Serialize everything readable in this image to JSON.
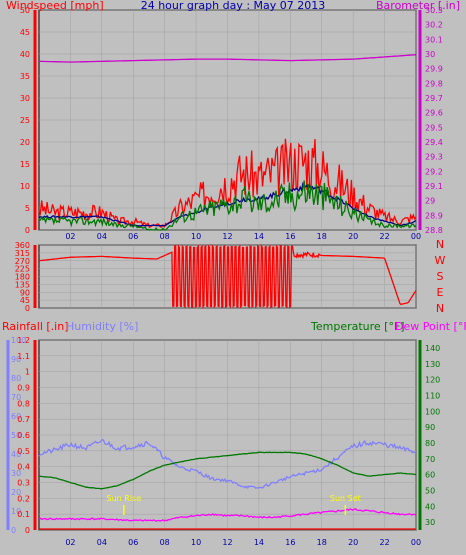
{
  "chart_data": [
    {
      "type": "line",
      "title": "24 hour graph day : May 07 2013",
      "ylabel_left": "Windspeed [mph]",
      "ylabel_right": "Barometer [.in]",
      "x_tick_labels": [
        "02",
        "04",
        "06",
        "08",
        "10",
        "12",
        "14",
        "16",
        "18",
        "20",
        "22",
        "00"
      ],
      "ylim_left": [
        0,
        50
      ],
      "y_ticks_left": [
        "0",
        "5",
        "10",
        "15",
        "20",
        "25",
        "30",
        "35",
        "40",
        "45",
        "50"
      ],
      "ylim_right": [
        28.8,
        30.3
      ],
      "y_ticks_right": [
        "28.8",
        "28.9",
        "29",
        "29.1",
        "29.2",
        "29.3",
        "29.4",
        "29.5",
        "29.6",
        "29.7",
        "29.8",
        "29.9",
        "30",
        "30.1",
        "30.2",
        "30.3"
      ],
      "series": [
        {
          "key": "gust",
          "color": "#ff0000",
          "hours": [
            0,
            1,
            2,
            3,
            4,
            5,
            6,
            7,
            8,
            9,
            10,
            11,
            12,
            13,
            14,
            15,
            16,
            17,
            18,
            19,
            20,
            21,
            22,
            23,
            24
          ],
          "values": [
            5,
            4,
            4,
            4,
            4,
            2,
            2,
            1,
            1,
            5,
            7,
            9,
            11,
            13,
            12,
            13,
            15,
            16,
            14,
            11,
            8,
            5,
            3,
            2,
            3
          ]
        },
        {
          "key": "avg",
          "color": "#00008b",
          "hours": [
            0,
            2,
            4,
            6,
            8,
            9,
            10,
            11,
            12,
            13,
            14,
            15,
            16,
            17,
            18,
            19,
            20,
            21,
            22,
            23,
            24
          ],
          "values": [
            3,
            3,
            3,
            1,
            1,
            3,
            4,
            5,
            6,
            7,
            7,
            8,
            9,
            10,
            9,
            7,
            5,
            3,
            2,
            1,
            2
          ]
        },
        {
          "key": "speed",
          "color": "#007700",
          "hours": [
            0,
            1,
            2,
            3,
            4,
            5,
            6,
            7,
            8,
            9,
            10,
            11,
            12,
            13,
            14,
            15,
            16,
            17,
            18,
            19,
            20,
            21,
            22,
            23,
            24
          ],
          "values": [
            2,
            2,
            2,
            2,
            2,
            1,
            1,
            0,
            0,
            3,
            4,
            5,
            6,
            7,
            6,
            7,
            8,
            9,
            8,
            6,
            4,
            2,
            1,
            1,
            1
          ]
        },
        {
          "key": "barometer",
          "axis": "right",
          "color": "#cc00cc",
          "hours": [
            0,
            2,
            4,
            6,
            8,
            10,
            12,
            14,
            16,
            18,
            20,
            22,
            24
          ],
          "values": [
            29.95,
            29.945,
            29.95,
            29.955,
            29.96,
            29.965,
            29.965,
            29.96,
            29.955,
            29.96,
            29.965,
            29.98,
            29.995
          ]
        }
      ]
    },
    {
      "type": "line",
      "ylabel_right": "N W S E N",
      "compass": [
        "N",
        "W",
        "S",
        "E",
        "N"
      ],
      "ylim": [
        0,
        360
      ],
      "y_ticks": [
        "0",
        "45",
        "90",
        "135",
        "180",
        "225",
        "270",
        "315",
        "360"
      ],
      "series": [
        {
          "key": "direction",
          "color": "#ff0000",
          "hours": [
            0,
            2,
            4,
            6,
            7.5,
            8.5,
            10,
            12,
            14,
            16,
            18,
            20,
            21,
            22,
            23,
            23.5,
            24
          ],
          "values": [
            270,
            290,
            295,
            285,
            280,
            320,
            330,
            340,
            330,
            335,
            300,
            295,
            290,
            285,
            20,
            30,
            100
          ]
        }
      ]
    },
    {
      "type": "line",
      "ylabel_left": "Rainfall [.in]",
      "ylabel_left2": "Humidity [%]",
      "ylabel_right": "Temperature [°F]",
      "ylabel_right2": "Dew Point [°F]",
      "ylim_rain": [
        0,
        1.2
      ],
      "y_ticks_rain": [
        "0",
        "0.1",
        "0.2",
        "0.3",
        "0.4",
        "0.5",
        "0.6",
        "0.7",
        "0.8",
        "0.9",
        "1",
        "1.1",
        "1.2"
      ],
      "ylim_humidity": [
        0,
        100
      ],
      "y_ticks_humidity": [
        "0",
        "10",
        "20",
        "30",
        "40",
        "50",
        "60",
        "70",
        "80",
        "90",
        "100"
      ],
      "ylim_temp": [
        25,
        145
      ],
      "y_ticks_temp": [
        "30",
        "40",
        "50",
        "60",
        "70",
        "80",
        "90",
        "100",
        "110",
        "120",
        "130",
        "140"
      ],
      "sunrise_label": "Sun Rise",
      "sunset_label": "Sun Set",
      "sunrise_hour": 5.4,
      "sunset_hour": 19.5,
      "series": [
        {
          "key": "humidity",
          "color": "#7f7fff",
          "hours": [
            0,
            1,
            2,
            3,
            4,
            5,
            6,
            7,
            8,
            9,
            10,
            11,
            12,
            13,
            14,
            15,
            16,
            17,
            18,
            19,
            20,
            21,
            22,
            23,
            24
          ],
          "values": [
            40,
            42,
            45,
            43,
            47,
            43,
            44,
            46,
            38,
            33,
            31,
            27,
            26,
            23,
            22,
            25,
            28,
            30,
            32,
            38,
            44,
            46,
            45,
            43,
            41
          ]
        },
        {
          "key": "temperature",
          "color": "#007700",
          "hours": [
            0,
            1,
            2,
            3,
            4,
            5,
            6,
            7,
            8,
            9,
            10,
            11,
            12,
            13,
            14,
            15,
            16,
            17,
            18,
            19,
            20,
            21,
            22,
            23,
            24
          ],
          "values": [
            59,
            58,
            55,
            52,
            51,
            53,
            57,
            62,
            66,
            68,
            70,
            71,
            72,
            73,
            74,
            74,
            74,
            73,
            70,
            66,
            61,
            59,
            60,
            61,
            60
          ]
        },
        {
          "key": "dewpoint",
          "color": "#ff00ff",
          "hours": [
            0,
            2,
            4,
            6,
            8,
            9,
            10,
            11,
            12,
            13,
            14,
            15,
            16,
            17,
            18,
            19,
            20,
            21,
            22,
            23,
            24
          ],
          "values": [
            32,
            32,
            32,
            31,
            31,
            33,
            34,
            35,
            34,
            34,
            33,
            33,
            34,
            35,
            36,
            37,
            38,
            37,
            36,
            35,
            35
          ]
        },
        {
          "key": "rain",
          "color": "#ff0000",
          "hours": [
            0,
            24
          ],
          "values": [
            0,
            0
          ]
        }
      ]
    }
  ]
}
